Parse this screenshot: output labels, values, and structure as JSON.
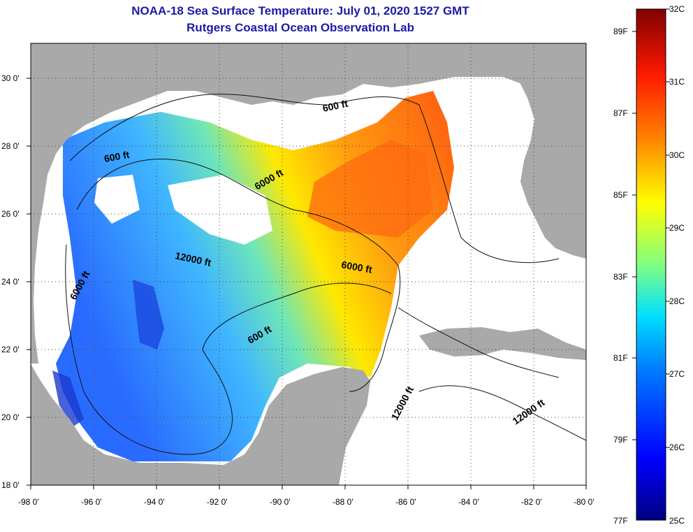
{
  "header": {
    "title_line1": "NOAA-18 Sea Surface Temperature:  July 01, 2020 1527 GMT",
    "title_line2": "Rutgers Coastal Ocean Observation Lab"
  },
  "map": {
    "lon_range": [
      -98,
      -80
    ],
    "lat_range": [
      18,
      31
    ],
    "x_ticks": [
      "-98 0'",
      "-96 0'",
      "-94 0'",
      "-92 0'",
      "-90 0'",
      "-88 0'",
      "-86 0'",
      "-84 0'",
      "-82 0'",
      "-80 0'"
    ],
    "y_ticks": [
      "18 0'",
      "20 0'",
      "22 0'",
      "24 0'",
      "26 0'",
      "28 0'",
      "30 0'"
    ],
    "contour_labels": [
      "600 ft",
      "600 ft",
      "6000 ft",
      "12000 ft",
      "6000 ft",
      "6000 ft",
      "600 ft",
      "12000 ft",
      "12000 ft"
    ],
    "land_color": "#a9a9a9",
    "cloud_color": "#ffffff"
  },
  "colorbar": {
    "celsius_labels": [
      "32C",
      "31C",
      "30C",
      "29C",
      "28C",
      "27C",
      "26C",
      "25C"
    ],
    "fahrenheit_labels": [
      "89F",
      "87F",
      "85F",
      "83F",
      "81F",
      "79F",
      "77F"
    ],
    "colors": [
      "#000080",
      "#0000ff",
      "#0080ff",
      "#00ffff",
      "#80ff80",
      "#ffff00",
      "#ff8000",
      "#ff0000",
      "#800000"
    ]
  }
}
